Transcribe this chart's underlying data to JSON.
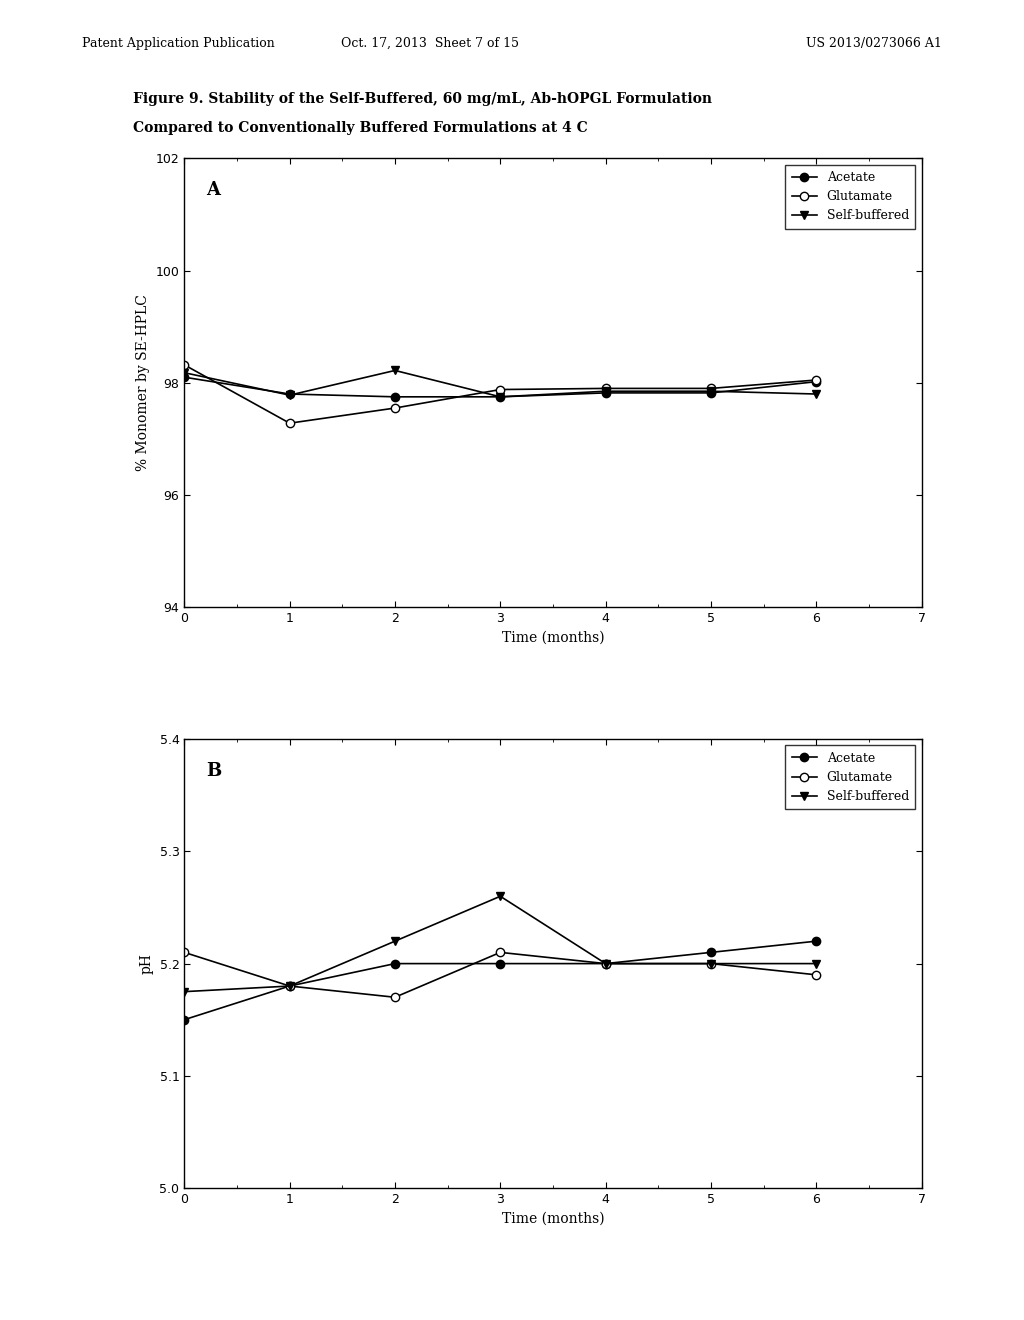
{
  "header_left": "Patent Application Publication",
  "header_center": "Oct. 17, 2013  Sheet 7 of 15",
  "header_right": "US 2013/0273066 A1",
  "figure_title_line1": "Figure 9. Stability of the Self-Buffered, 60 mg/mL, Ab-hOPGL Formulation",
  "figure_title_line2": "Compared to Conventionally Buffered Formulations at 4 C",
  "panel_A": {
    "label": "A",
    "ylabel": "% Monomer by SE-HPLC",
    "xlabel": "Time (months)",
    "ylim": [
      94,
      102
    ],
    "xlim": [
      0,
      7
    ],
    "yticks": [
      94,
      96,
      98,
      100,
      102
    ],
    "xticks": [
      0,
      1,
      2,
      3,
      4,
      5,
      6,
      7
    ],
    "acetate_x": [
      0,
      1,
      2,
      3,
      4,
      5,
      6
    ],
    "acetate_y": [
      98.1,
      97.8,
      97.75,
      97.75,
      97.82,
      97.82,
      98.02
    ],
    "glutamate_x": [
      0,
      1,
      2,
      3,
      4,
      5,
      6
    ],
    "glutamate_y": [
      98.32,
      97.28,
      97.55,
      97.88,
      97.9,
      97.9,
      98.05
    ],
    "selfbuffered_x": [
      0,
      1,
      2,
      3,
      4,
      5,
      6
    ],
    "selfbuffered_y": [
      98.18,
      97.78,
      98.22,
      97.75,
      97.85,
      97.85,
      97.8
    ]
  },
  "panel_B": {
    "label": "B",
    "ylabel": "pH",
    "xlabel": "Time (months)",
    "ylim": [
      5.0,
      5.4
    ],
    "xlim": [
      0,
      7
    ],
    "yticks": [
      5.0,
      5.1,
      5.2,
      5.3,
      5.4
    ],
    "xticks": [
      0,
      1,
      2,
      3,
      4,
      5,
      6,
      7
    ],
    "acetate_x": [
      0,
      1,
      2,
      3,
      4,
      5,
      6
    ],
    "acetate_y": [
      5.15,
      5.18,
      5.2,
      5.2,
      5.2,
      5.21,
      5.22
    ],
    "glutamate_x": [
      0,
      1,
      2,
      3,
      4,
      5,
      6
    ],
    "glutamate_y": [
      5.21,
      5.18,
      5.17,
      5.21,
      5.2,
      5.2,
      5.19
    ],
    "selfbuffered_x": [
      0,
      1,
      2,
      3,
      4,
      5,
      6
    ],
    "selfbuffered_y": [
      5.175,
      5.18,
      5.22,
      5.26,
      5.2,
      5.2,
      5.2
    ]
  },
  "legend_labels": [
    "Acetate",
    "Glutamate",
    "Self-buffered"
  ],
  "bg_color": "#ffffff",
  "line_color": "#000000",
  "fontsize_header": 9,
  "fontsize_title": 10,
  "fontsize_axis_label": 10,
  "fontsize_tick": 9,
  "fontsize_legend": 9,
  "fontsize_panel_label": 13
}
